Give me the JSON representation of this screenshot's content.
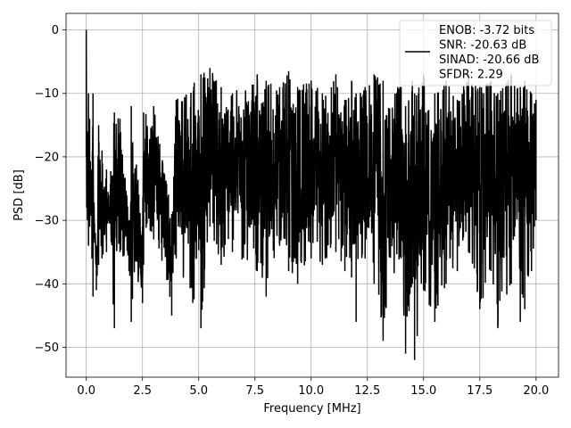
{
  "chart_data": {
    "type": "line",
    "xlabel": "Frequency [MHz]",
    "ylabel": "PSD [dB]",
    "xlim": [
      -0.9,
      21.0
    ],
    "ylim": [
      -54.7,
      2.6
    ],
    "xticks": [
      0.0,
      2.5,
      5.0,
      7.5,
      10.0,
      12.5,
      15.0,
      17.5,
      20.0
    ],
    "xtick_labels": [
      "0.0",
      "2.5",
      "5.0",
      "7.5",
      "10.0",
      "12.5",
      "15.0",
      "17.5",
      "20.0"
    ],
    "yticks": [
      0,
      -10,
      -20,
      -30,
      -40,
      -50
    ],
    "ytick_labels": [
      "0",
      "−10",
      "−20",
      "−30",
      "−40",
      "−50"
    ],
    "grid": true,
    "legend_position": "top-right",
    "series": [
      {
        "name": "ENOB: -3.72 bits\nSNR: -20.63 dB\nSINAD: -20.66 dB\nSFDR: 2.29",
        "legend_lines": [
          "ENOB: -3.72 bits",
          "SNR: -20.63 dB",
          "SINAD: -20.66 dB",
          "SFDR: 2.29"
        ],
        "color": "#000000",
        "description": "Dense noise-like PSD across 0 to 20 MHz; DC spike at 0 dB, bulk between about -12 dB and -33 dB, sporadic dips down to about -52 dB",
        "x": [
          0.0,
          0.02,
          0.05,
          0.1,
          0.15,
          0.25,
          0.3,
          0.35,
          0.45,
          0.55,
          0.7,
          0.9,
          1.0,
          1.25,
          1.5,
          1.9,
          2.0,
          2.5,
          2.55,
          3.0,
          3.8,
          4.0,
          5.1,
          5.5,
          6.0,
          6.5,
          7.6,
          8.0,
          8.6,
          9.0,
          9.4,
          10.0,
          10.5,
          11.1,
          11.5,
          11.8,
          12.0,
          12.4,
          12.8,
          13.2,
          14.0,
          14.2,
          14.5,
          14.6,
          15.0,
          15.5,
          16.0,
          16.5,
          17.0,
          17.5,
          18.0,
          18.3,
          18.9,
          19.3,
          19.5,
          19.8,
          20.0
        ],
        "peaks": [
          0.0,
          -19.0,
          -16.0,
          -10.0,
          -14.0,
          -22.0,
          -10.0,
          -28.0,
          -34.0,
          -15.0,
          -19.0,
          -22.0,
          -26.0,
          -13.0,
          -14.0,
          -30.0,
          -12.0,
          -31.0,
          -13.0,
          -12.0,
          -29.0,
          -11.0,
          -7.0,
          -6.0,
          -9.0,
          -10.0,
          -7.0,
          -8.0,
          -9.0,
          -6.5,
          -9.0,
          -8.0,
          -10.0,
          -7.0,
          -11.0,
          -8.0,
          -10.0,
          -9.0,
          -7.0,
          -8.0,
          -9.0,
          -12.0,
          -8.0,
          -10.0,
          -7.0,
          -10.0,
          -8.0,
          -11.0,
          -7.0,
          -9.0,
          -8.0,
          -10.0,
          -7.0,
          -9.0,
          -8.0,
          -10.0,
          -11.0
        ],
        "troughs": [
          -20.0,
          -28.0,
          -30.0,
          -34.0,
          -31.0,
          -36.0,
          -42.0,
          -33.0,
          -41.0,
          -37.0,
          -36.0,
          -35.0,
          -30.0,
          -47.0,
          -35.0,
          -38.0,
          -46.0,
          -43.0,
          -37.0,
          -33.0,
          -45.0,
          -36.0,
          -47.0,
          -31.0,
          -37.0,
          -35.0,
          -38.0,
          -42.0,
          -34.0,
          -38.0,
          -40.0,
          -36.0,
          -37.0,
          -35.0,
          -38.0,
          -39.0,
          -46.0,
          -36.0,
          -40.0,
          -49.0,
          -36.0,
          -51.0,
          -40.0,
          -52.0,
          -41.0,
          -46.0,
          -40.0,
          -38.0,
          -35.0,
          -44.0,
          -38.0,
          -47.0,
          -40.0,
          -46.0,
          -44.0,
          -38.0,
          -30.0
        ]
      }
    ]
  }
}
